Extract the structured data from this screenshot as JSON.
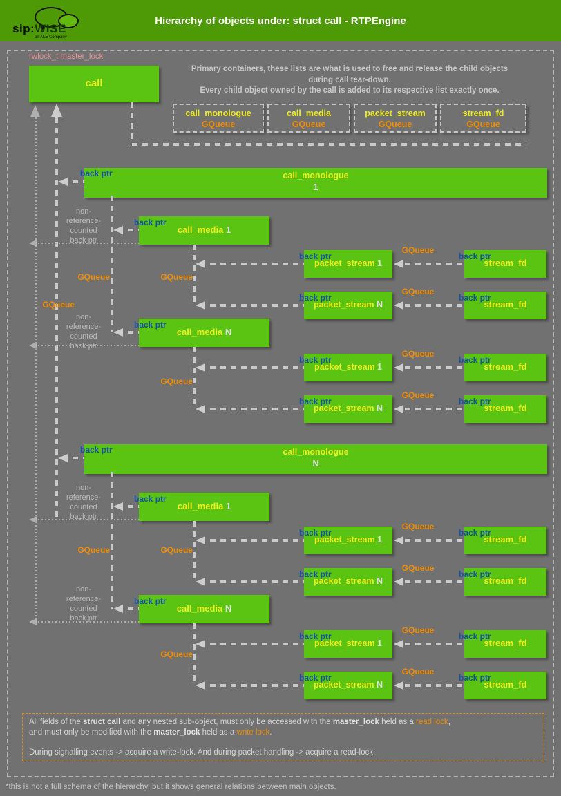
{
  "header": {
    "title": "Hierarchy of objects under: struct call - RTPEngine",
    "logo": {
      "brand_sip": "sip:",
      "brand_wise": "WISE",
      "tagline": "an ALE Company"
    }
  },
  "annotations": {
    "master_lock_label": "rwlock_t master_lock",
    "intro_line1": "Primary containers, these lists are what is used to free and release the child objects",
    "intro_line2": "during call tear-down.",
    "intro_line3": "Every child object owned by the call is added to its respective list exactly once.",
    "back_ptr": "back ptr",
    "gqueue": "GQueue",
    "non_ref_lines": [
      "non-",
      "reference-",
      "counted",
      "back ptr"
    ]
  },
  "containers": [
    {
      "name": "call_monologue",
      "sub": "GQueue"
    },
    {
      "name": "call_media",
      "sub": "GQueue"
    },
    {
      "name": "packet_stream",
      "sub": "GQueue"
    },
    {
      "name": "stream_fd",
      "sub": "GQueue"
    }
  ],
  "nodes": {
    "call": {
      "label": "call"
    },
    "monologues": [
      {
        "label": "call_monologue",
        "suffix": "1"
      },
      {
        "label": "call_monologue",
        "suffix": "N"
      }
    ],
    "medias": [
      {
        "label": "call_media",
        "suffix": "1"
      },
      {
        "label": "call_media",
        "suffix": "N"
      },
      {
        "label": "call_media",
        "suffix": "1"
      },
      {
        "label": "call_media",
        "suffix": "N"
      }
    ],
    "packet_streams": [
      {
        "label": "packet_stream",
        "suffix": "1"
      },
      {
        "label": "packet_stream",
        "suffix": "N"
      },
      {
        "label": "packet_stream",
        "suffix": "1"
      },
      {
        "label": "packet_stream",
        "suffix": "N"
      },
      {
        "label": "packet_stream",
        "suffix": "1"
      },
      {
        "label": "packet_stream",
        "suffix": "N"
      },
      {
        "label": "packet_stream",
        "suffix": "1"
      },
      {
        "label": "packet_stream",
        "suffix": "N"
      }
    ],
    "stream_fds": [
      {
        "label": "stream_fd"
      },
      {
        "label": "stream_fd"
      },
      {
        "label": "stream_fd"
      },
      {
        "label": "stream_fd"
      },
      {
        "label": "stream_fd"
      },
      {
        "label": "stream_fd"
      },
      {
        "label": "stream_fd"
      },
      {
        "label": "stream_fd"
      }
    ]
  },
  "note": {
    "lines": [
      [
        {
          "t": "All fields of the "
        },
        {
          "t": "struct call",
          "b": true
        },
        {
          "t": " and any nested sub-object, must only be accessed with the "
        },
        {
          "t": "master_lock",
          "b": true
        },
        {
          "t": " held as a "
        },
        {
          "t": "read lock",
          "o": true
        },
        {
          "t": ","
        }
      ],
      [
        {
          "t": "and must only be modified with the "
        },
        {
          "t": "master_lock",
          "b": true
        },
        {
          "t": " held as a "
        },
        {
          "t": "write lock",
          "o": true
        },
        {
          "t": "."
        }
      ],
      [],
      [
        {
          "t": "During signalling events -> acquire a write-lock. And during packet handling -> acquire a read-lock."
        }
      ]
    ]
  },
  "footer": "*this is not a full schema of the hierarchy, but it shows general relations between main objects.",
  "colors": {
    "header_green": "#4e9a06",
    "box_green": "#5bc413",
    "label_yellow": "#eded1c",
    "gqueue_orange": "#f08c00",
    "back_ptr_blue": "#1553a8",
    "master_lock_salmon": "#e59090",
    "background_gray": "#717171"
  }
}
